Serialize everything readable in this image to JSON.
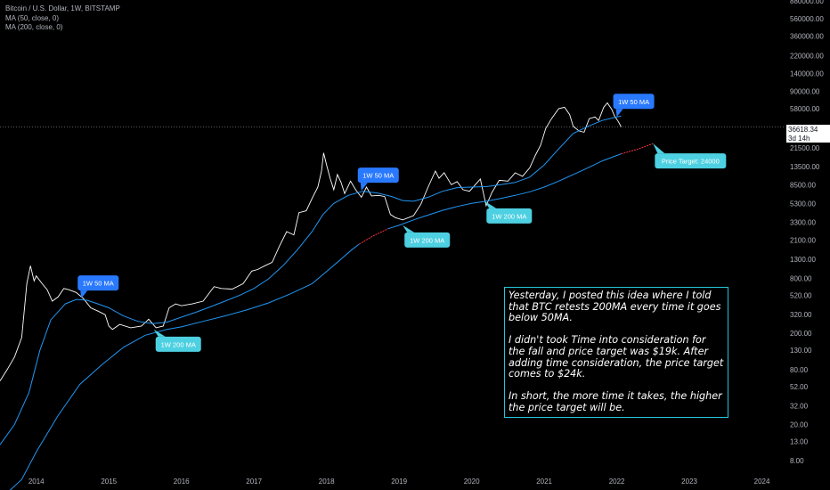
{
  "legend": {
    "title": "Bitcoin / U.S. Dollar, 1W, BITSTAMP",
    "ma50": "MA (50, close, 0)",
    "ma200": "MA (200, close, 0)"
  },
  "current_price": {
    "value": "36618.34",
    "countdown": "3d 14h"
  },
  "note": [
    "Yesterday, I posted this idea where I told that BTC retests 200MA every time it goes below 50MA.",
    "I didn't took Time into consideration for the fall and price target was $19k. After adding time consideration, the price target comes to $24k.",
    "In short, the more time it takes, the higher the price target will be."
  ],
  "colors": {
    "background": "#000000",
    "price_line": "#ffffff",
    "ma_line": "#2196f3",
    "projection": "#f23645",
    "callout_blue": "#2979ff",
    "callout_cyan": "#4dd0e1"
  },
  "chart_data": {
    "type": "line",
    "yscale": "log",
    "x_ticks": [
      "2014",
      "2015",
      "2016",
      "2017",
      "2018",
      "2019",
      "2020",
      "2021",
      "2022",
      "2023",
      "2024"
    ],
    "y_ticks": [
      "8.00",
      "13.00",
      "20.00",
      "32.00",
      "52.00",
      "80.00",
      "130.00",
      "200.00",
      "320.00",
      "520.00",
      "800.00",
      "1300.00",
      "2100.00",
      "3300.00",
      "5300.00",
      "8500.00",
      "13500.00",
      "21500.00",
      "58000.00",
      "90000.00",
      "140000.00",
      "220000.00",
      "360000.00",
      "560000.00",
      "880000.00"
    ],
    "ylim": [
      6,
      900000
    ],
    "xlim": [
      2013.5,
      2024.3
    ],
    "series": [
      {
        "key": "price",
        "points": [
          [
            2013.5,
            60
          ],
          [
            2013.6,
            80
          ],
          [
            2013.7,
            110
          ],
          [
            2013.8,
            180
          ],
          [
            2013.87,
            700
          ],
          [
            2013.92,
            1100
          ],
          [
            2013.97,
            750
          ],
          [
            2014.0,
            850
          ],
          [
            2014.08,
            700
          ],
          [
            2014.15,
            600
          ],
          [
            2014.22,
            450
          ],
          [
            2014.3,
            500
          ],
          [
            2014.38,
            620
          ],
          [
            2014.45,
            600
          ],
          [
            2014.55,
            560
          ],
          [
            2014.65,
            480
          ],
          [
            2014.75,
            380
          ],
          [
            2014.85,
            350
          ],
          [
            2014.95,
            320
          ],
          [
            2015.0,
            240
          ],
          [
            2015.05,
            220
          ],
          [
            2015.15,
            250
          ],
          [
            2015.3,
            230
          ],
          [
            2015.45,
            240
          ],
          [
            2015.55,
            285
          ],
          [
            2015.65,
            230
          ],
          [
            2015.75,
            240
          ],
          [
            2015.83,
            380
          ],
          [
            2015.92,
            420
          ],
          [
            2016.0,
            400
          ],
          [
            2016.15,
            420
          ],
          [
            2016.3,
            450
          ],
          [
            2016.45,
            650
          ],
          [
            2016.55,
            620
          ],
          [
            2016.7,
            610
          ],
          [
            2016.85,
            700
          ],
          [
            2016.97,
            960
          ],
          [
            2017.05,
            1000
          ],
          [
            2017.15,
            1100
          ],
          [
            2017.25,
            1200
          ],
          [
            2017.35,
            1800
          ],
          [
            2017.45,
            2600
          ],
          [
            2017.55,
            2400
          ],
          [
            2017.62,
            4200
          ],
          [
            2017.72,
            4400
          ],
          [
            2017.8,
            6000
          ],
          [
            2017.88,
            8000
          ],
          [
            2017.93,
            12000
          ],
          [
            2017.96,
            19000
          ],
          [
            2018.0,
            14000
          ],
          [
            2018.05,
            10000
          ],
          [
            2018.1,
            7500
          ],
          [
            2018.15,
            11000
          ],
          [
            2018.2,
            9000
          ],
          [
            2018.25,
            6800
          ],
          [
            2018.33,
            9300
          ],
          [
            2018.4,
            7500
          ],
          [
            2018.48,
            6200
          ],
          [
            2018.55,
            8000
          ],
          [
            2018.62,
            6400
          ],
          [
            2018.72,
            6500
          ],
          [
            2018.8,
            6300
          ],
          [
            2018.88,
            4000
          ],
          [
            2018.95,
            3700
          ],
          [
            2019.05,
            3500
          ],
          [
            2019.2,
            3900
          ],
          [
            2019.3,
            5200
          ],
          [
            2019.4,
            8000
          ],
          [
            2019.5,
            12000
          ],
          [
            2019.55,
            10000
          ],
          [
            2019.62,
            11500
          ],
          [
            2019.72,
            8500
          ],
          [
            2019.8,
            9200
          ],
          [
            2019.88,
            7500
          ],
          [
            2019.97,
            7200
          ],
          [
            2020.05,
            8500
          ],
          [
            2020.12,
            9800
          ],
          [
            2020.2,
            5000
          ],
          [
            2020.28,
            7000
          ],
          [
            2020.38,
            9500
          ],
          [
            2020.5,
            9300
          ],
          [
            2020.6,
            11500
          ],
          [
            2020.7,
            10500
          ],
          [
            2020.8,
            13000
          ],
          [
            2020.88,
            18000
          ],
          [
            2020.95,
            23000
          ],
          [
            2021.02,
            35000
          ],
          [
            2021.1,
            45000
          ],
          [
            2021.2,
            58000
          ],
          [
            2021.28,
            60000
          ],
          [
            2021.35,
            50000
          ],
          [
            2021.4,
            37000
          ],
          [
            2021.48,
            33000
          ],
          [
            2021.55,
            32000
          ],
          [
            2021.62,
            45000
          ],
          [
            2021.7,
            47000
          ],
          [
            2021.75,
            43000
          ],
          [
            2021.82,
            60000
          ],
          [
            2021.87,
            67000
          ],
          [
            2021.93,
            57000
          ],
          [
            2021.97,
            48000
          ],
          [
            2022.02,
            42000
          ],
          [
            2022.06,
            36600
          ]
        ]
      },
      {
        "key": "ma50",
        "points": [
          [
            2013.5,
            12
          ],
          [
            2013.7,
            20
          ],
          [
            2013.9,
            45
          ],
          [
            2014.05,
            130
          ],
          [
            2014.2,
            280
          ],
          [
            2014.4,
            420
          ],
          [
            2014.55,
            470
          ],
          [
            2014.7,
            460
          ],
          [
            2014.85,
            420
          ],
          [
            2015.0,
            380
          ],
          [
            2015.2,
            310
          ],
          [
            2015.4,
            270
          ],
          [
            2015.6,
            255
          ],
          [
            2015.8,
            265
          ],
          [
            2016.0,
            300
          ],
          [
            2016.2,
            340
          ],
          [
            2016.4,
            390
          ],
          [
            2016.6,
            450
          ],
          [
            2016.8,
            520
          ],
          [
            2017.0,
            620
          ],
          [
            2017.2,
            790
          ],
          [
            2017.4,
            1100
          ],
          [
            2017.6,
            1650
          ],
          [
            2017.8,
            2600
          ],
          [
            2017.95,
            4000
          ],
          [
            2018.1,
            5300
          ],
          [
            2018.3,
            6500
          ],
          [
            2018.5,
            7200
          ],
          [
            2018.7,
            6900
          ],
          [
            2018.9,
            6300
          ],
          [
            2019.05,
            5700
          ],
          [
            2019.2,
            5600
          ],
          [
            2019.4,
            6200
          ],
          [
            2019.6,
            7200
          ],
          [
            2019.8,
            7900
          ],
          [
            2020.0,
            8000
          ],
          [
            2020.2,
            8100
          ],
          [
            2020.4,
            8500
          ],
          [
            2020.6,
            9000
          ],
          [
            2020.8,
            10300
          ],
          [
            2021.0,
            14000
          ],
          [
            2021.2,
            21000
          ],
          [
            2021.4,
            31000
          ],
          [
            2021.6,
            37000
          ],
          [
            2021.8,
            43000
          ],
          [
            2022.0,
            47000
          ],
          [
            2022.06,
            48000
          ]
        ]
      },
      {
        "key": "ma200",
        "points": [
          [
            2013.5,
            3
          ],
          [
            2013.8,
            5
          ],
          [
            2014.0,
            10
          ],
          [
            2014.3,
            25
          ],
          [
            2014.6,
            55
          ],
          [
            2014.9,
            90
          ],
          [
            2015.2,
            140
          ],
          [
            2015.5,
            190
          ],
          [
            2015.8,
            220
          ],
          [
            2016.0,
            235
          ],
          [
            2016.3,
            270
          ],
          [
            2016.6,
            310
          ],
          [
            2016.9,
            360
          ],
          [
            2017.2,
            430
          ],
          [
            2017.5,
            540
          ],
          [
            2017.8,
            700
          ],
          [
            2018.0,
            950
          ],
          [
            2018.2,
            1300
          ],
          [
            2018.35,
            1650
          ],
          [
            2018.45,
            1900
          ]
        ]
      },
      {
        "key": "ma200_dim",
        "points": [
          [
            2018.45,
            1900
          ],
          [
            2018.65,
            2350
          ],
          [
            2018.85,
            2800
          ]
        ]
      },
      {
        "key": "ma200_b",
        "points": [
          [
            2018.85,
            2800
          ],
          [
            2019.0,
            3050
          ],
          [
            2019.2,
            3500
          ],
          [
            2019.4,
            3950
          ],
          [
            2019.6,
            4450
          ],
          [
            2019.8,
            4900
          ],
          [
            2020.0,
            5300
          ],
          [
            2020.2,
            5600
          ],
          [
            2020.4,
            6000
          ],
          [
            2020.6,
            6500
          ],
          [
            2020.8,
            7100
          ],
          [
            2021.0,
            8000
          ],
          [
            2021.2,
            9300
          ],
          [
            2021.4,
            11000
          ],
          [
            2021.6,
            13000
          ],
          [
            2021.8,
            15500
          ],
          [
            2022.0,
            17800
          ],
          [
            2022.06,
            18500
          ]
        ]
      },
      {
        "key": "projection",
        "points": [
          [
            2022.06,
            18500
          ],
          [
            2022.3,
            21000
          ],
          [
            2022.5,
            24000
          ]
        ]
      }
    ],
    "annotations": [
      {
        "label": "1W 50 MA",
        "style": "blue",
        "at": [
          2014.62,
          480
        ]
      },
      {
        "label": "1W 200 MA",
        "style": "cyan",
        "at": [
          2015.62,
          220
        ]
      },
      {
        "label": "1W 50 MA",
        "style": "blue",
        "at": [
          2018.48,
          7300
        ]
      },
      {
        "label": "1W 200 MA",
        "style": "cyan",
        "at": [
          2019.05,
          3050
        ]
      },
      {
        "label": "1W 200 MA",
        "style": "cyan",
        "at": [
          2020.18,
          5600
        ]
      },
      {
        "label": "1W 50 MA",
        "style": "blue",
        "at": [
          2022.0,
          47000
        ]
      },
      {
        "label": "Price Target: 24000",
        "style": "cyan",
        "at": [
          2022.5,
          24000
        ]
      }
    ]
  }
}
